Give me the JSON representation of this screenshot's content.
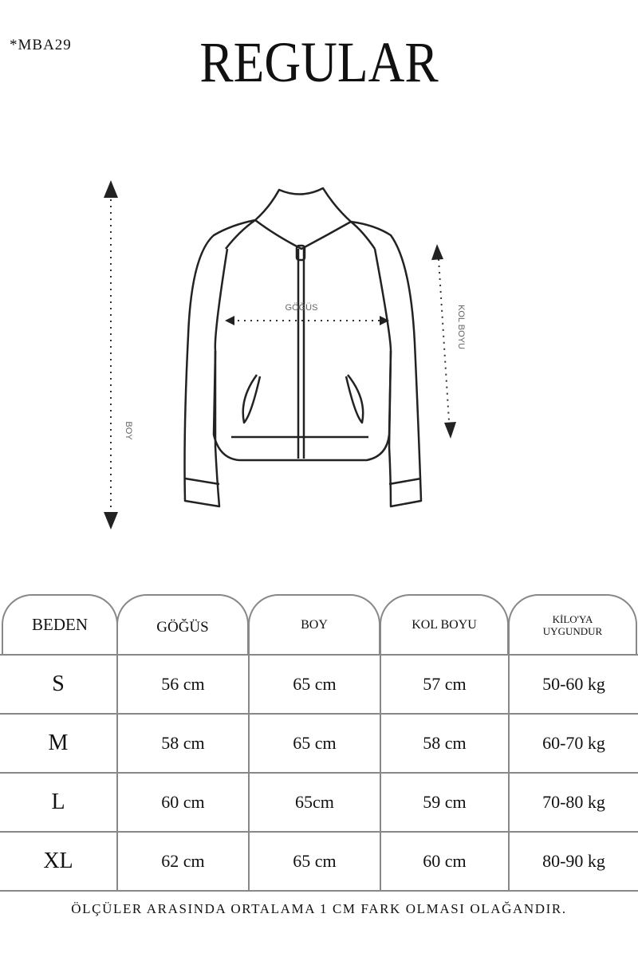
{
  "product_code": "*MBA29",
  "fit_title": "REGULAR",
  "diagram": {
    "chest_label": "GÖĞÜS",
    "sleeve_label": "KOL BOYU",
    "length_label": "BOY"
  },
  "table": {
    "headers": [
      "BEDEN",
      "GÖĞÜS",
      "BOY",
      "KOL BOYU",
      "KİLO'YA UYGUNDUR"
    ],
    "rows": [
      [
        "S",
        "56 cm",
        "65 cm",
        "57  cm",
        "50-60 kg"
      ],
      [
        "M",
        "58 cm",
        "65 cm",
        "58 cm",
        "60-70 kg"
      ],
      [
        "L",
        "60 cm",
        "65cm",
        "59 cm",
        "70-80 kg"
      ],
      [
        "XL",
        "62 cm",
        "65 cm",
        "60 cm",
        "80-90 kg"
      ]
    ]
  },
  "note": "ÖLÇÜLER ARASINDA ORTALAMA 1 CM FARK OLMASI OLAĞANDIR."
}
